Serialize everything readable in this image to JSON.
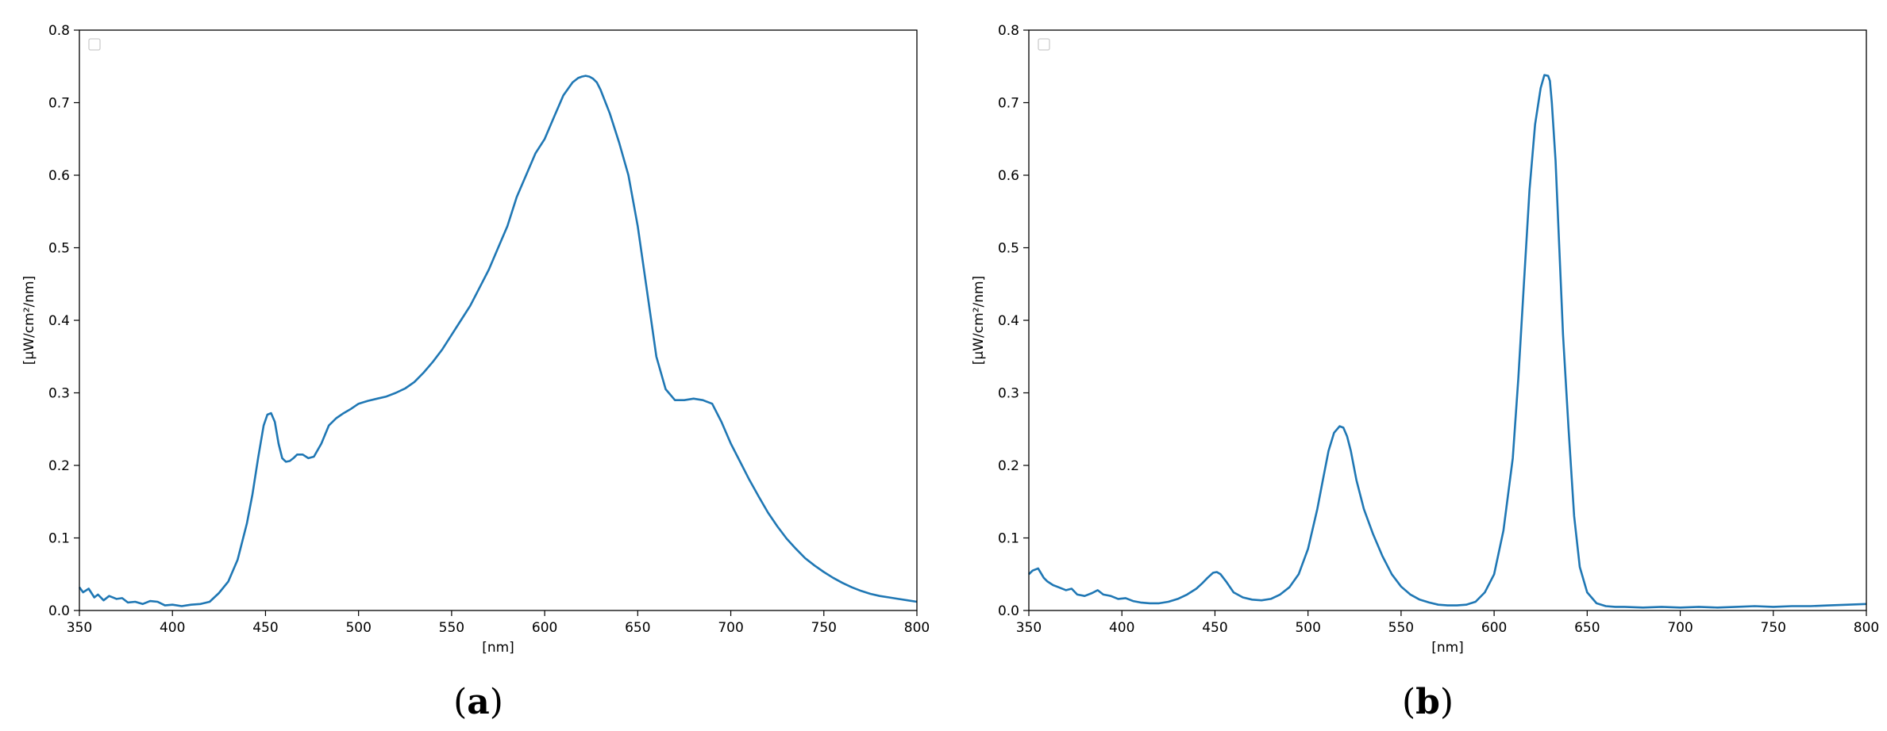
{
  "colors": {
    "series": "#1f77b4",
    "axis": "#000000",
    "legend_box": "#cccccc"
  },
  "chart_data": [
    {
      "type": "line",
      "panel_label": "(a)",
      "panel_letter": "a",
      "xlabel": "[nm]",
      "ylabel": "[μW/cm²/nm]",
      "xlim": [
        350,
        800
      ],
      "ylim": [
        0,
        0.8
      ],
      "xticks": [
        350,
        400,
        450,
        500,
        550,
        600,
        650,
        700,
        750,
        800
      ],
      "yticks": [
        0.0,
        0.1,
        0.2,
        0.3,
        0.4,
        0.5,
        0.6,
        0.7,
        0.8
      ],
      "grid": false,
      "legend": "top-left (empty)",
      "series": [
        {
          "x": [
            350,
            352,
            355,
            358,
            360,
            363,
            366,
            370,
            373,
            376,
            380,
            384,
            388,
            392,
            396,
            400,
            405,
            410,
            415,
            420,
            425,
            430,
            435,
            440,
            443,
            446,
            449,
            451,
            453,
            455,
            457,
            459,
            461,
            463,
            465,
            467,
            470,
            473,
            476,
            480,
            484,
            488,
            492,
            496,
            500,
            505,
            510,
            515,
            520,
            525,
            530,
            535,
            540,
            545,
            550,
            555,
            560,
            565,
            570,
            575,
            580,
            585,
            590,
            595,
            600,
            605,
            610,
            615,
            618,
            620,
            622,
            624,
            626,
            628,
            630,
            635,
            640,
            645,
            650,
            655,
            660,
            665,
            670,
            675,
            680,
            685,
            690,
            695,
            700,
            705,
            710,
            715,
            720,
            725,
            730,
            735,
            740,
            745,
            750,
            755,
            760,
            765,
            770,
            775,
            780,
            785,
            790,
            795,
            800
          ],
          "y": [
            0.032,
            0.025,
            0.03,
            0.018,
            0.022,
            0.014,
            0.02,
            0.016,
            0.017,
            0.011,
            0.012,
            0.009,
            0.013,
            0.012,
            0.007,
            0.008,
            0.006,
            0.008,
            0.009,
            0.012,
            0.024,
            0.04,
            0.07,
            0.12,
            0.16,
            0.21,
            0.255,
            0.27,
            0.272,
            0.26,
            0.23,
            0.21,
            0.205,
            0.206,
            0.21,
            0.215,
            0.215,
            0.21,
            0.212,
            0.23,
            0.255,
            0.265,
            0.272,
            0.278,
            0.285,
            0.289,
            0.292,
            0.295,
            0.3,
            0.306,
            0.315,
            0.328,
            0.343,
            0.36,
            0.38,
            0.4,
            0.42,
            0.445,
            0.47,
            0.5,
            0.53,
            0.57,
            0.6,
            0.63,
            0.65,
            0.68,
            0.71,
            0.728,
            0.734,
            0.736,
            0.737,
            0.736,
            0.733,
            0.728,
            0.718,
            0.685,
            0.645,
            0.6,
            0.53,
            0.44,
            0.35,
            0.305,
            0.29,
            0.29,
            0.292,
            0.29,
            0.285,
            0.26,
            0.23,
            0.205,
            0.18,
            0.157,
            0.135,
            0.116,
            0.099,
            0.085,
            0.072,
            0.062,
            0.053,
            0.045,
            0.038,
            0.032,
            0.027,
            0.023,
            0.02,
            0.018,
            0.016,
            0.014,
            0.012
          ]
        }
      ]
    },
    {
      "type": "line",
      "panel_label": "(b)",
      "panel_letter": "b",
      "xlabel": "[nm]",
      "ylabel": "[μW/cm²/nm]",
      "xlim": [
        350,
        800
      ],
      "ylim": [
        0,
        0.8
      ],
      "xticks": [
        350,
        400,
        450,
        500,
        550,
        600,
        650,
        700,
        750,
        800
      ],
      "yticks": [
        0.0,
        0.1,
        0.2,
        0.3,
        0.4,
        0.5,
        0.6,
        0.7,
        0.8
      ],
      "grid": false,
      "legend": "top-left (empty)",
      "series": [
        {
          "x": [
            350,
            352,
            355,
            358,
            360,
            363,
            366,
            370,
            373,
            376,
            380,
            384,
            387,
            390,
            394,
            398,
            402,
            406,
            410,
            415,
            420,
            425,
            430,
            435,
            440,
            443,
            446,
            449,
            451,
            453,
            456,
            460,
            465,
            470,
            475,
            480,
            485,
            490,
            495,
            500,
            505,
            508,
            511,
            514,
            517,
            519,
            521,
            523,
            526,
            530,
            535,
            540,
            545,
            550,
            555,
            560,
            565,
            570,
            575,
            580,
            585,
            590,
            595,
            600,
            605,
            610,
            613,
            616,
            619,
            622,
            625,
            627,
            629,
            630,
            631,
            633,
            635,
            637,
            640,
            643,
            646,
            650,
            655,
            660,
            665,
            670,
            680,
            690,
            700,
            710,
            720,
            730,
            740,
            750,
            760,
            770,
            780,
            790,
            800
          ],
          "y": [
            0.05,
            0.055,
            0.058,
            0.045,
            0.04,
            0.035,
            0.032,
            0.028,
            0.03,
            0.022,
            0.02,
            0.024,
            0.028,
            0.022,
            0.02,
            0.016,
            0.017,
            0.013,
            0.011,
            0.01,
            0.01,
            0.012,
            0.016,
            0.022,
            0.03,
            0.037,
            0.045,
            0.052,
            0.053,
            0.05,
            0.04,
            0.025,
            0.018,
            0.015,
            0.014,
            0.016,
            0.022,
            0.032,
            0.05,
            0.085,
            0.14,
            0.18,
            0.22,
            0.245,
            0.254,
            0.252,
            0.24,
            0.22,
            0.18,
            0.14,
            0.105,
            0.075,
            0.05,
            0.033,
            0.022,
            0.015,
            0.011,
            0.008,
            0.007,
            0.007,
            0.008,
            0.012,
            0.025,
            0.05,
            0.11,
            0.21,
            0.32,
            0.45,
            0.58,
            0.67,
            0.72,
            0.738,
            0.737,
            0.73,
            0.7,
            0.62,
            0.5,
            0.38,
            0.25,
            0.13,
            0.06,
            0.025,
            0.01,
            0.006,
            0.005,
            0.005,
            0.004,
            0.005,
            0.004,
            0.005,
            0.004,
            0.005,
            0.006,
            0.005,
            0.006,
            0.006,
            0.007,
            0.008,
            0.009
          ]
        }
      ]
    }
  ]
}
